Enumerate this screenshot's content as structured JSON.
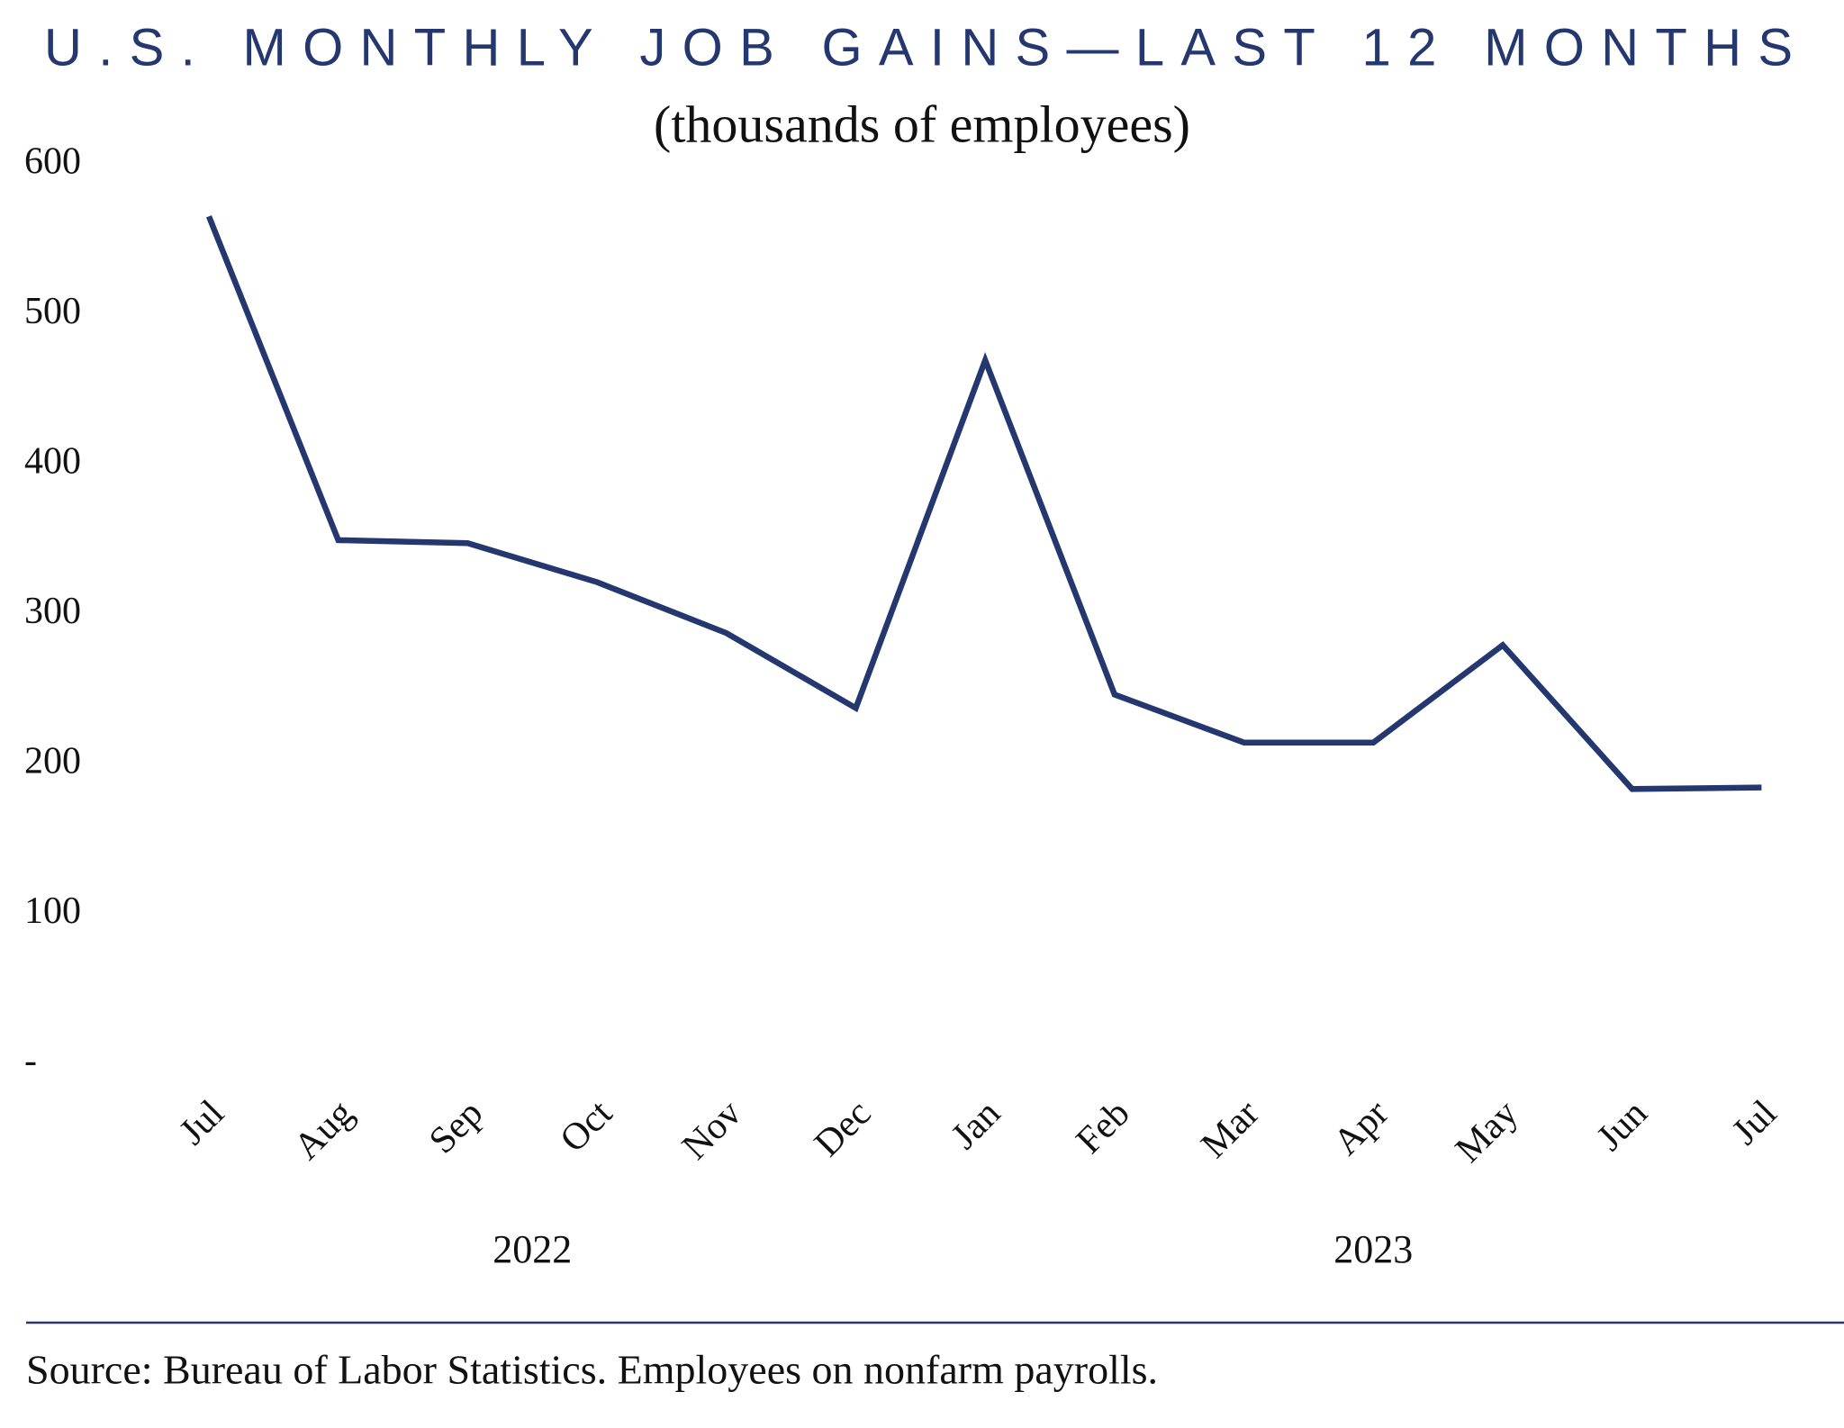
{
  "chart_data": {
    "type": "line",
    "title": "U.S. MONTHLY JOB GAINS—LAST 12 MONTHS",
    "subtitle": "(thousands of employees)",
    "categories": [
      "Jul",
      "Aug",
      "Sep",
      "Oct",
      "Nov",
      "Dec",
      "Jan",
      "Feb",
      "Mar",
      "Apr",
      "May",
      "Jun",
      "Jul"
    ],
    "x_groups": [
      {
        "label": "2022",
        "count": 6
      },
      {
        "label": "2023",
        "count": 7
      }
    ],
    "series": [
      {
        "name": "Job gains",
        "color": "#25376f",
        "values": [
          568,
          352,
          350,
          324,
          290,
          240,
          472,
          249,
          217,
          217,
          282,
          186,
          187
        ]
      }
    ],
    "ylim": [
      0,
      600
    ],
    "yticks": [
      {
        "value": 0,
        "label": "-"
      },
      100,
      200,
      300,
      400,
      500,
      600
    ],
    "grid": false,
    "source": "Source: Bureau of Labor Statistics. Employees on nonfarm payrolls."
  }
}
